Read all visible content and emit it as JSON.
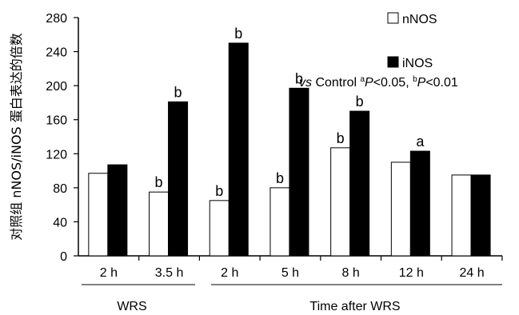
{
  "chart_data": {
    "type": "bar",
    "categories": [
      "2 h",
      "3.5 h",
      "2 h",
      "5 h",
      "8 h",
      "12 h",
      "24 h"
    ],
    "series": [
      {
        "name": "nNOS",
        "values": [
          97,
          75,
          65,
          80,
          127,
          110,
          95
        ],
        "color": "#ffffff"
      },
      {
        "name": "iNOS",
        "values": [
          107,
          181,
          250,
          197,
          170,
          123,
          95
        ],
        "color": "#000000"
      }
    ],
    "annotations": [
      {
        "category_index": 1,
        "series": "nNOS",
        "text": "b"
      },
      {
        "category_index": 1,
        "series": "iNOS",
        "text": "b"
      },
      {
        "category_index": 2,
        "series": "nNOS",
        "text": "b"
      },
      {
        "category_index": 2,
        "series": "iNOS",
        "text": "b"
      },
      {
        "category_index": 3,
        "series": "nNOS",
        "text": "b"
      },
      {
        "category_index": 3,
        "series": "iNOS",
        "text": "b"
      },
      {
        "category_index": 4,
        "series": "nNOS",
        "text": "b"
      },
      {
        "category_index": 4,
        "series": "iNOS",
        "text": "b"
      },
      {
        "category_index": 5,
        "series": "iNOS",
        "text": "a"
      }
    ],
    "yticks": [
      0,
      40,
      80,
      120,
      160,
      200,
      240,
      280
    ],
    "ylim": [
      0,
      280
    ],
    "ylabel": "对照组 nNOS/iNOS 蛋白表达的倍数",
    "xlabel": "",
    "groups": [
      {
        "label": "WRS",
        "from": 0,
        "to": 1
      },
      {
        "label": "Time after WRS",
        "from": 2,
        "to": 6
      }
    ],
    "legend_position": "top-right",
    "note": {
      "vs": "vs",
      "control": " Control ",
      "a_sup": "a",
      "p1": "P",
      "t1": "<0.05, ",
      "b_sup": "b",
      "p2": "P",
      "t2": "<0.01"
    },
    "grid": false
  }
}
